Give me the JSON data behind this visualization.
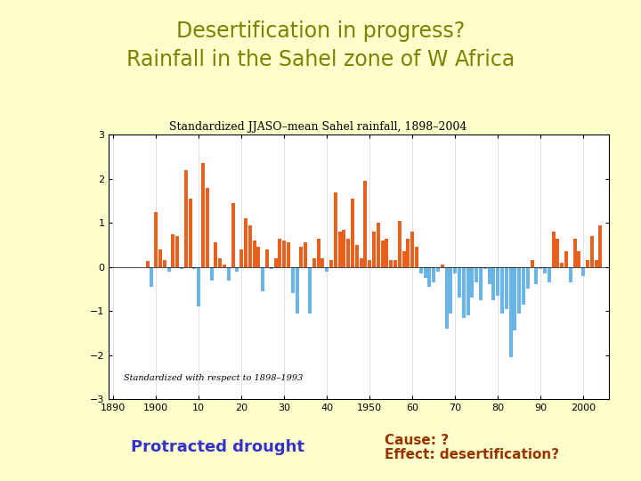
{
  "title_line1": "Desertification in progress?",
  "title_line2": "Rainfall in the Sahel zone of W Africa",
  "title_color": "#808000",
  "background_color": "#ffffcc",
  "chart_title": "Standardized JJASO–mean Sahel rainfall, 1898–2004",
  "chart_subtitle": "Standardized with respect to 1898–1993",
  "bottom_left_text": "Protracted drought",
  "bottom_right_text1": "Cause: ?",
  "bottom_right_text2": "Effect: desertification?",
  "bottom_left_color": "#3333cc",
  "bottom_right_color": "#993300",
  "years": [
    1898,
    1899,
    1900,
    1901,
    1902,
    1903,
    1904,
    1905,
    1906,
    1907,
    1908,
    1909,
    1910,
    1911,
    1912,
    1913,
    1914,
    1915,
    1916,
    1917,
    1918,
    1919,
    1920,
    1921,
    1922,
    1923,
    1924,
    1925,
    1926,
    1927,
    1928,
    1929,
    1930,
    1931,
    1932,
    1933,
    1934,
    1935,
    1936,
    1937,
    1938,
    1939,
    1940,
    1941,
    1942,
    1943,
    1944,
    1945,
    1946,
    1947,
    1948,
    1949,
    1950,
    1951,
    1952,
    1953,
    1954,
    1955,
    1956,
    1957,
    1958,
    1959,
    1960,
    1961,
    1962,
    1963,
    1964,
    1965,
    1966,
    1967,
    1968,
    1969,
    1970,
    1971,
    1972,
    1973,
    1974,
    1975,
    1976,
    1977,
    1978,
    1979,
    1980,
    1981,
    1982,
    1983,
    1984,
    1985,
    1986,
    1987,
    1988,
    1989,
    1990,
    1991,
    1992,
    1993,
    1994,
    1995,
    1996,
    1997,
    1998,
    1999,
    2000,
    2001,
    2002,
    2003,
    2004
  ],
  "values": [
    0.13,
    -0.45,
    1.25,
    0.4,
    0.15,
    -0.1,
    0.75,
    0.7,
    -0.05,
    2.2,
    1.55,
    -0.05,
    -0.9,
    2.35,
    1.8,
    -0.3,
    0.55,
    0.2,
    0.05,
    -0.3,
    1.45,
    -0.1,
    0.4,
    1.1,
    0.95,
    0.6,
    0.45,
    -0.55,
    0.4,
    -0.05,
    0.2,
    0.65,
    0.6,
    0.55,
    -0.6,
    -1.05,
    0.45,
    0.55,
    -1.05,
    0.2,
    0.65,
    0.2,
    -0.1,
    0.15,
    1.7,
    0.8,
    0.85,
    0.65,
    1.55,
    0.5,
    0.2,
    1.95,
    0.15,
    0.8,
    1.0,
    0.6,
    0.65,
    0.15,
    0.15,
    1.05,
    0.35,
    0.65,
    0.8,
    0.45,
    -0.15,
    -0.25,
    -0.45,
    -0.35,
    -0.1,
    0.05,
    -1.4,
    -1.05,
    -0.15,
    -0.7,
    -1.15,
    -1.1,
    -0.7,
    -0.35,
    -0.75,
    -0.05,
    -0.4,
    -0.75,
    -0.65,
    -1.05,
    -0.95,
    -2.05,
    -1.45,
    -1.05,
    -0.85,
    -0.5,
    0.15,
    -0.4,
    -0.05,
    -0.15,
    -0.35,
    0.8,
    0.65,
    0.1,
    0.35,
    -0.35,
    0.65,
    0.35,
    -0.2,
    0.15,
    0.7,
    0.15,
    0.95
  ],
  "positive_color": "#e8601e",
  "negative_color": "#6ab4e8",
  "ylim": [
    -3,
    3
  ],
  "yticks": [
    -3,
    -2,
    -1,
    0,
    1,
    2,
    3
  ],
  "xlim": [
    1889,
    2006
  ],
  "xtick_positions": [
    1890,
    1900,
    1910,
    1920,
    1930,
    1940,
    1950,
    1960,
    1970,
    1980,
    1990,
    2000
  ],
  "xtick_labels": [
    "1890",
    "1900",
    "10",
    "20",
    "30",
    "40",
    "1950",
    "60",
    "70",
    "80",
    "90",
    "2000"
  ],
  "fig_width": 7.2,
  "fig_height": 5.4,
  "dpi": 100
}
